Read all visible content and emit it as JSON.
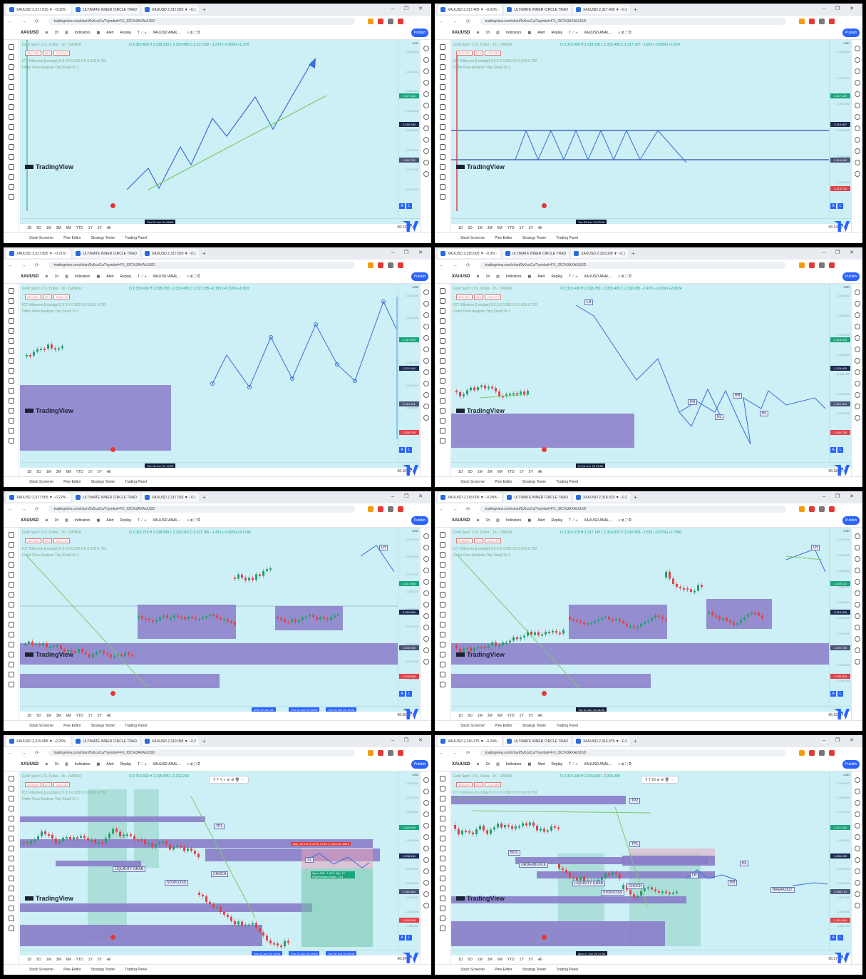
{
  "common": {
    "url": "tradingview.com/chart/5v6cuCu/?symbol=FX_IDC%3AXAUUSD",
    "tab2": "ULTIMATE INNER CIRCLE TRAD",
    "symbol": "XAUUSD",
    "interval": "1h",
    "indicators": "Indicators",
    "alert": "Alert",
    "replay": "Replay",
    "layout_name": "XAUUSD ANAL...",
    "publish": "Publish",
    "legend_title": "Gold Spot / U.S. Dollar · 1h · OANDA",
    "indicator_line": "ICT Killzones [Lucidge] 0.5 2.6 0.382 0.5 0.618 0.782",
    "indicator_line2": "Order Flow Analysis Tiny Small 2x 1",
    "watermark": "TradingView",
    "usd": "USD",
    "periods": [
      "1D",
      "5D",
      "1M",
      "3M",
      "6M",
      "YTD",
      "1Y",
      "5Y",
      "All"
    ],
    "bottom": [
      "Stock Screener",
      "Pine Editor",
      "Strategy Tester",
      "Trading Panel"
    ],
    "colors": {
      "chart_bg": "#cdeff6",
      "zone": "#8a7cc9",
      "path": "#3a6fd8",
      "trend": "#7cc96a",
      "bull": "#2a9d6f",
      "bear": "#e0434a",
      "accent": "#2962ff"
    }
  },
  "panels": [
    {
      "tab1": "XAUUSD 2,317.010 ▼ −0.02% ·",
      "tab3": "XAUUSD 2,317.820 ▼ −0.1",
      "chips": [
        "2317.339",
        "90.0",
        "2317.647"
      ],
      "ohlc": "O 2,315.400 H 2,318.230 L 2,315.405 C 2,317.330 −1.270 (−0.06%) +1.378",
      "badge": "2,317.330",
      "time_label": "Thu 20 Jun '24 08:00",
      "clock": "06:12:15",
      "axis": [
        "2,325.000",
        "2,322.000",
        "2,320.000",
        "2,318.000",
        "2,316.000",
        "2,314.000",
        "2,312.000",
        "2,310.000"
      ],
      "tag": "2,316.280",
      "tag2": "2,311.730"
    },
    {
      "tab1": "XAUUSD 2,317.405 ▼ −0.02% ·",
      "tab3": "XAUUSD 2,317.405 ▼ −0.1",
      "chips": [
        "2317.337",
        "50.0",
        "2317.697"
      ],
      "ohlc": "O 2,315.400 H 2,318.230 L 2,315.405 C 2,317.337 −1.925 (−0.08%) +1.574",
      "badge": "2,317.520",
      "time_label": "Tue 25 Jun '24 03:00",
      "clock": "06:14:22",
      "axis": [
        "2,320.000",
        "2,318.000",
        "2,316.000",
        "2,314.000",
        "2,312.000",
        "2,310.000"
      ],
      "tag": "2,316.067",
      "tag2": "2,314.869",
      "tag3": "2,313.710"
    },
    {
      "tab1": "XAUUSD 2,317.825 ▼ −0.21% ·",
      "tab3": "XAUUSD 2,317.820 ▼ −0.1",
      "chips": [
        "2317.807",
        "90.0",
        "2318.190"
      ],
      "ohlc": "O 2,315.400 H 2,318.230 L 2,315.405 C 2,317.235 +0.105 (+0.10%) +1.829",
      "badge": "2,317.875",
      "time_label": "Tue 18 Jun '24 13:00",
      "clock": "06:16:29",
      "axis": [
        "2,328.000",
        "2,325.000",
        "2,322.000",
        "2,319.000",
        "2,316.000",
        "2,313.000",
        "2,310.000"
      ],
      "tag": "2,321.904",
      "tag2": "2,319.191",
      "tag3": "2,309.783"
    },
    {
      "tab1": "XAUUSD 2,316.005 ▼ −0.3% ·",
      "tab3": "XAUUSD 2,316.000 ▼ −0.1",
      "chips": [
        "2317.897",
        "38.0",
        "2318.277"
      ],
      "ohlc": "O 2,315.400 H 2,318.230 L 2,315.405 C 2,316.085 −1.435 (−0.10%) +2.0024",
      "badge": "2,318.025",
      "time_label": "Fri 14 Jun '24 03:00",
      "clock": "06:18:36",
      "axis": [
        "2,340.000",
        "2,335.000",
        "2,330.000",
        "2,325.000",
        "2,320.000",
        "2,315.000",
        "2,310.000",
        "2,305.000"
      ],
      "tag": "2,328.690",
      "tag2": "2,321.904",
      "tag3": "2,309.783",
      "labels": [
        "LH",
        "HH",
        "HL",
        "HH",
        "HL"
      ]
    },
    {
      "tab1": "XAUUSD 2,317.565 ▼ −0.22% ·",
      "tab3": "XAUUSD 2,317.565 ▼ −0.1",
      "chips": [
        "2317.241",
        "40.0",
        "2317.737"
      ],
      "ohlc": "O 2,315.715 H 2,318.690 L 2,315.315 C 2,317.780 −1.420 (−0.06%) +9.1744",
      "badge": "2,317.305",
      "time_labels": [
        "Wed 12 Jun '24",
        "Thu 13 Jun '24 03:00",
        "Thu 13 Jun '24 11:00"
      ],
      "clock": "06:20:43",
      "axis": [
        "2,340.000",
        "2,335.000",
        "2,330.000",
        "2,325.000",
        "2,320.000",
        "2,315.000",
        "2,310.000",
        "2,305.000",
        "2,300.000"
      ],
      "tag": "2,321.904",
      "tag2": "2,309.783",
      "tag3": "2,300.858",
      "labels": [
        "LH"
      ]
    },
    {
      "tab1": "XAUUSD 2,318.005 ▼ −0.28% ·",
      "tab3": "XAUUSD 2,318.010 ▼ −0.2",
      "chips": [
        "2318.807",
        "37.0",
        "2319.197"
      ],
      "ohlc": "O 2,315.370 H 2,317.145 L 2,314.820 C 2,316.905 −1.535 (−0.07%) +1.7683",
      "badge": "2,319.110",
      "time_label": "Tue 11 Jun '24 16:00",
      "clock": "06:22:50",
      "axis": [
        "2,340.000",
        "2,335.000",
        "2,330.000",
        "2,325.000",
        "2,320.000",
        "2,315.000",
        "2,310.000",
        "2,305.000",
        "2,300.000",
        "2,295.000"
      ],
      "tag": "2,316.040",
      "tag2": "2,309.783",
      "tag3": "2,296.008",
      "labels": [
        "LH"
      ]
    },
    {
      "tab1": "XAUUSD 2,319.085 ▼ −0.25% ·",
      "tab3": "XAUUSD 2,319.085 ▼ −0.2",
      "chips": [
        "2319.397",
        "57.0",
        "2319.467"
      ],
      "ohlc": "O 2,313.460 H 2,315.825 L 2,312.230",
      "badge": "2,320.404",
      "time_labels": [
        "Tue 11 Jun '24 14:00",
        "Thu 13 Jun '24 19:00",
        "Tue 18 Jun '24 04:00"
      ],
      "clock": "06:24:57",
      "axis": [
        "2,385.000",
        "2,375.000",
        "2,365.000",
        "2,355.000",
        "2,345.000",
        "2,335.000",
        "2,325.000",
        "2,315.000",
        "2,305.000",
        "2,295.000",
        "2,285.000"
      ],
      "tag": "2,338.434",
      "tag2": "2,311.484",
      "tag3": "2,294.108",
      "labels": [
        "TP1",
        "LIQUIDITY GRAB",
        "STOPLOSS",
        "CHOCH",
        "S1"
      ],
      "stop_text": "Stop: 20.191 (0.87%) 2,019.1, Amount: 888.5",
      "open_text": "Open P&L: 1,294, Qty: 12 Risk/Reward Ratio: 2.19"
    },
    {
      "tab1": "XAUUSD 2,316.375 ▼ −0.24% ·",
      "tab3": "XAUUSD 2,316.375 ▼ −0.2",
      "chips": [
        "2316.397",
        "40.0",
        "2316.697"
      ],
      "ohlc": "O 2,315.400 H 2,316.605 L 2,315.405",
      "badge": "2,311.163",
      "time_label": "Mon 17 Jun '24 07:00",
      "clock": "06:27:02",
      "axis": [
        "2,390.000",
        "2,380.000",
        "2,370.000",
        "2,360.000",
        "2,350.000",
        "2,340.000",
        "2,330.000",
        "2,320.000",
        "2,310.000",
        "2,300.000",
        "2,290.000"
      ],
      "tag": "2,384.535",
      "tag2": "2,355.175",
      "tag3": "2,311.494",
      "labels": [
        "TP2",
        "TP1",
        "BOS",
        "ORDERBLOCK",
        "LIQUIDITY GRAB",
        "STOPLOSS",
        "CHOCH",
        "HL",
        "LH",
        "HH",
        "BREAKOUT"
      ]
    }
  ]
}
